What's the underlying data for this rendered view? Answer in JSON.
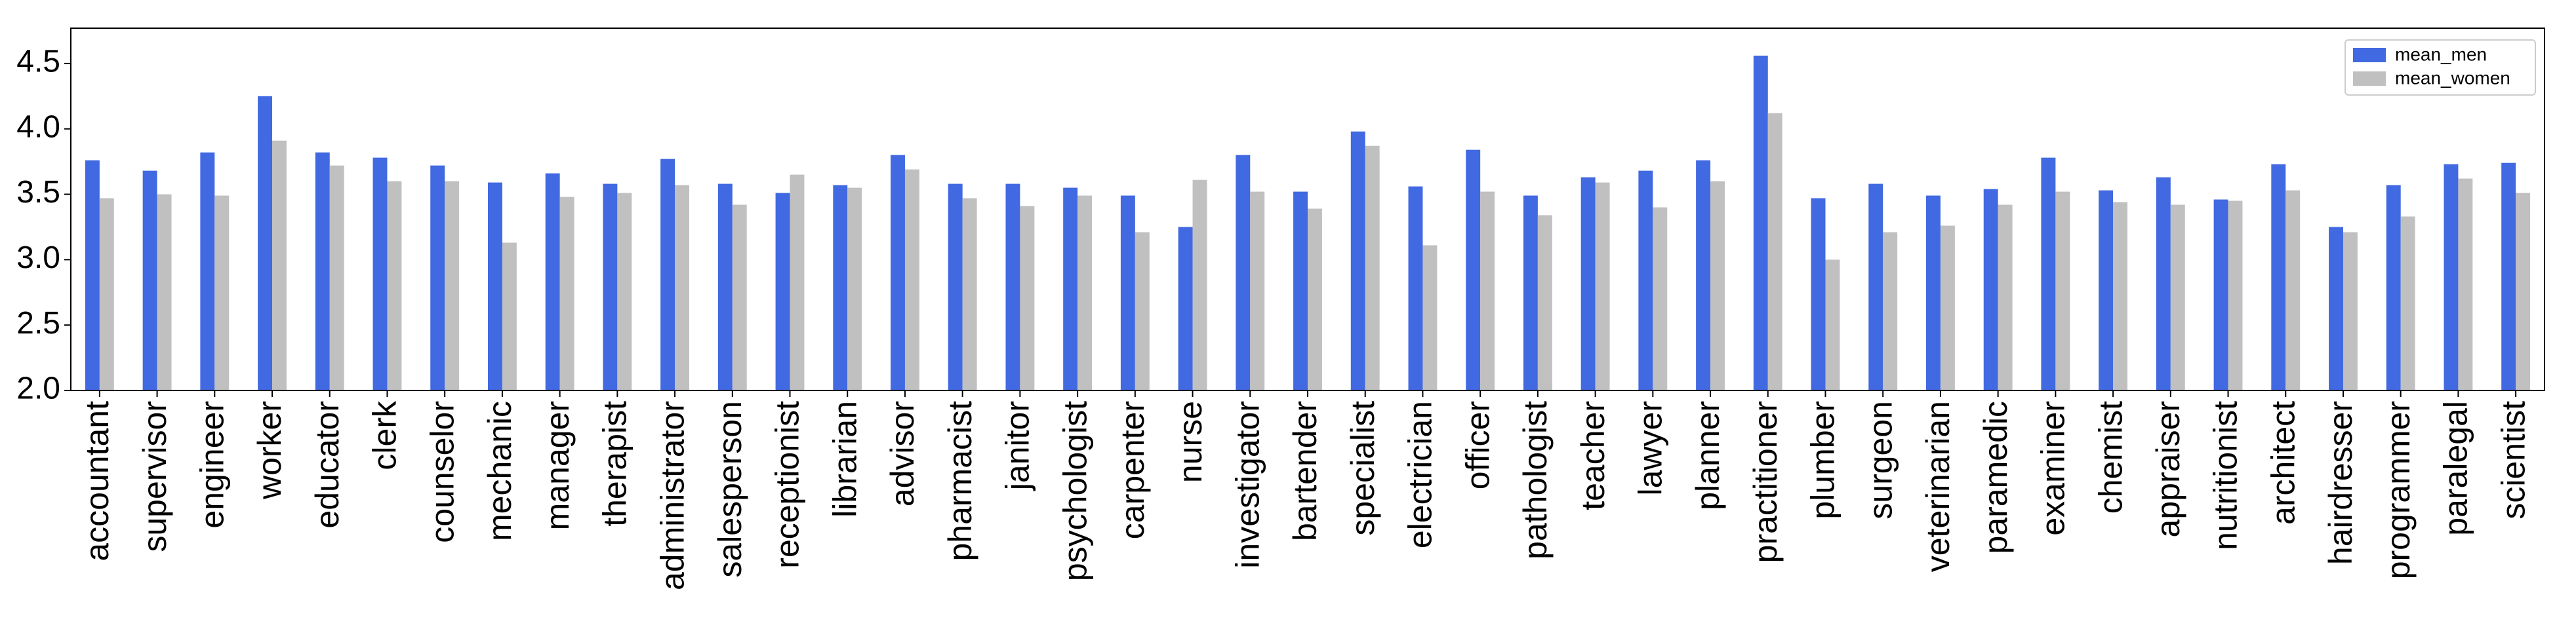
{
  "chart_data": {
    "type": "bar",
    "categories": [
      "accountant",
      "supervisor",
      "engineer",
      "worker",
      "educator",
      "clerk",
      "counselor",
      "mechanic",
      "manager",
      "therapist",
      "administrator",
      "salesperson",
      "receptionist",
      "librarian",
      "advisor",
      "pharmacist",
      "janitor",
      "psychologist",
      "carpenter",
      "nurse",
      "investigator",
      "bartender",
      "specialist",
      "electrician",
      "officer",
      "pathologist",
      "teacher",
      "lawyer",
      "planner",
      "practitioner",
      "plumber",
      "surgeon",
      "veterinarian",
      "paramedic",
      "examiner",
      "chemist",
      "appraiser",
      "nutritionist",
      "architect",
      "hairdresser",
      "programmer",
      "paralegal",
      "scientist"
    ],
    "series": [
      {
        "name": "mean_men",
        "color": "#4169e1",
        "values": [
          3.76,
          3.68,
          3.82,
          4.25,
          3.82,
          3.78,
          3.72,
          3.59,
          3.66,
          3.58,
          3.77,
          3.58,
          3.51,
          3.57,
          3.8,
          3.58,
          3.58,
          3.55,
          3.49,
          3.25,
          3.8,
          3.52,
          3.98,
          3.56,
          3.84,
          3.49,
          3.63,
          3.68,
          3.76,
          4.56,
          3.47,
          3.58,
          3.49,
          3.54,
          3.78,
          3.53,
          3.63,
          3.46,
          3.73,
          3.25,
          3.57,
          3.73,
          3.74
        ]
      },
      {
        "name": "mean_women",
        "color": "#c0c0c0",
        "values": [
          3.47,
          3.5,
          3.49,
          3.91,
          3.72,
          3.6,
          3.6,
          3.13,
          3.48,
          3.51,
          3.57,
          3.42,
          3.65,
          3.55,
          3.69,
          3.47,
          3.41,
          3.49,
          3.21,
          3.61,
          3.52,
          3.39,
          3.87,
          3.11,
          3.52,
          3.34,
          3.59,
          3.4,
          3.6,
          4.12,
          3.0,
          3.21,
          3.26,
          3.42,
          3.52,
          3.44,
          3.42,
          3.45,
          3.53,
          3.21,
          3.33,
          3.62,
          3.51
        ]
      }
    ],
    "ylim": [
      2.0,
      4.77
    ],
    "yticks": [
      {
        "value": 2,
        "label": "2.0"
      },
      2.5,
      {
        "value": 3,
        "label": "3.0"
      },
      3.5,
      {
        "value": 4,
        "label": "4.0"
      },
      4.5
    ],
    "legend": "upper right"
  }
}
